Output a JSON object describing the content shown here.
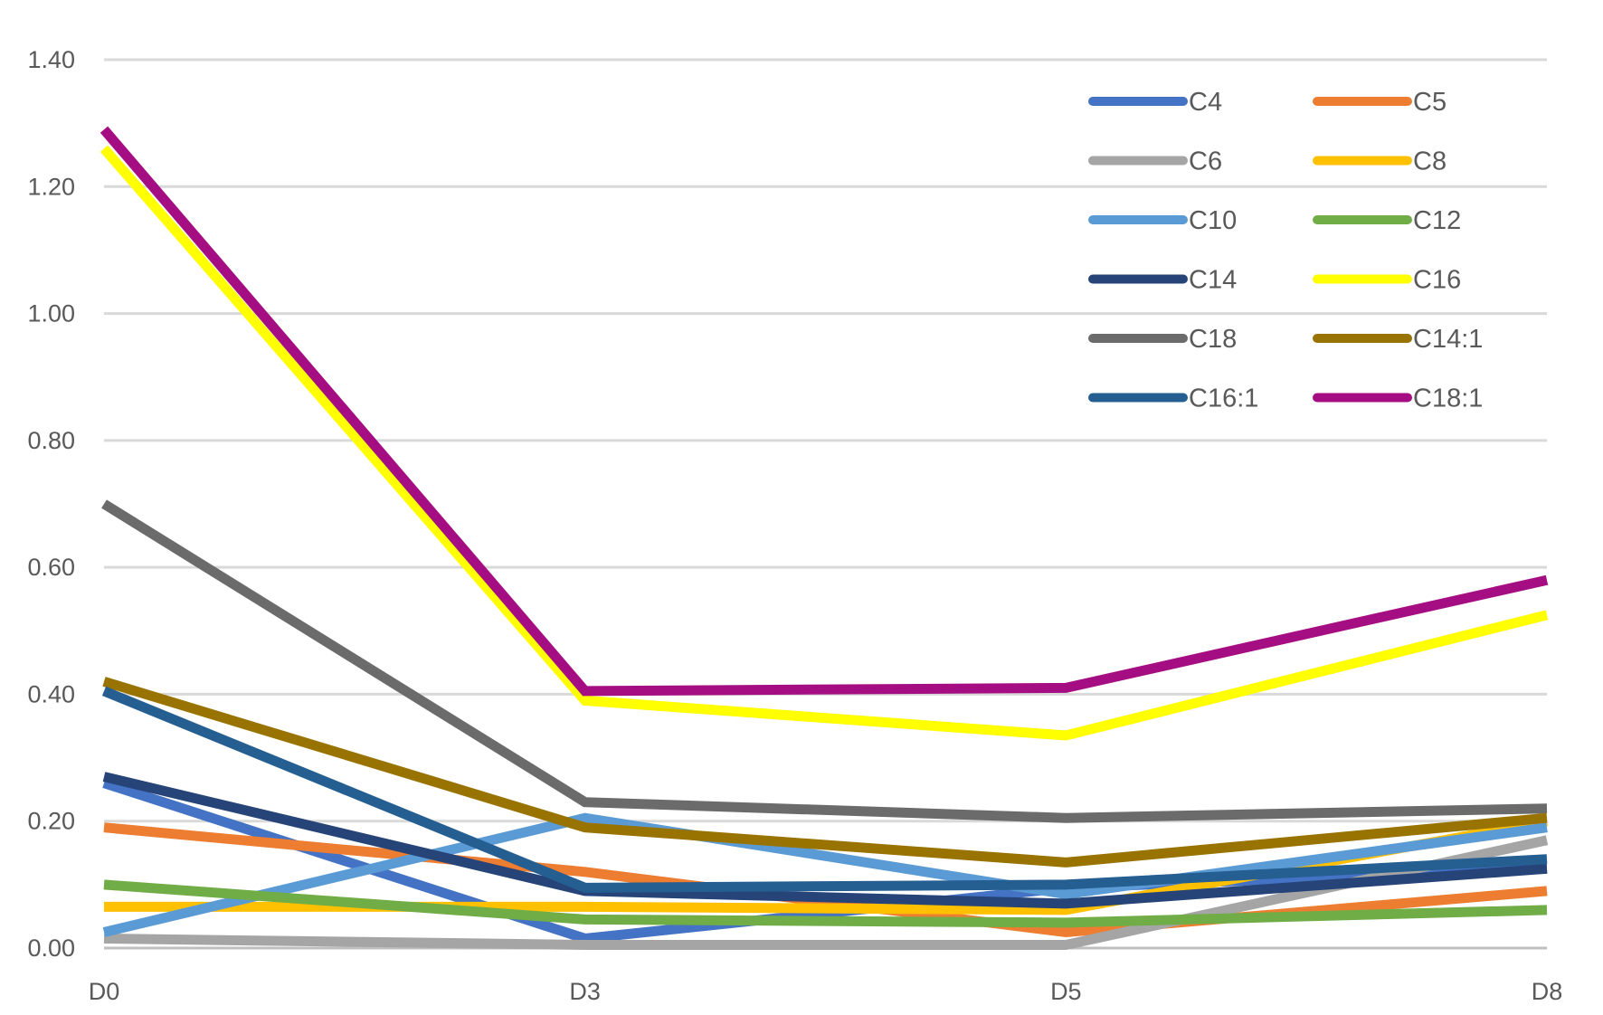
{
  "chart_data": {
    "type": "line",
    "title": "",
    "xlabel": "",
    "ylabel": "",
    "categories": [
      "D0",
      "D3",
      "D5",
      "D8"
    ],
    "ylim": [
      0,
      1.4
    ],
    "y_ticks": [
      "0.00",
      "0.20",
      "0.40",
      "0.60",
      "0.80",
      "1.00",
      "1.20",
      "1.40"
    ],
    "grid": "horizontal",
    "legend_position": "top-right",
    "series": [
      {
        "name": "C4",
        "color": "#4472C4",
        "values": [
          0.26,
          0.015,
          0.095,
          0.125
        ]
      },
      {
        "name": "C5",
        "color": "#ED7D31",
        "values": [
          0.19,
          0.12,
          0.025,
          0.09
        ]
      },
      {
        "name": "C6",
        "color": "#A5A5A5",
        "values": [
          0.015,
          0.005,
          0.005,
          0.17
        ]
      },
      {
        "name": "C8",
        "color": "#FFC000",
        "values": [
          0.065,
          0.065,
          0.06,
          0.2
        ]
      },
      {
        "name": "C10",
        "color": "#5B9BD5",
        "values": [
          0.025,
          0.205,
          0.085,
          0.19
        ]
      },
      {
        "name": "C12",
        "color": "#70AD47",
        "values": [
          0.1,
          0.045,
          0.04,
          0.06
        ]
      },
      {
        "name": "C14",
        "color": "#264478",
        "values": [
          0.27,
          0.09,
          0.07,
          0.125
        ]
      },
      {
        "name": "C16",
        "color": "#FFFF00",
        "values": [
          1.26,
          0.39,
          0.335,
          0.525
        ]
      },
      {
        "name": "C18",
        "color": "#6B6B6B",
        "values": [
          0.7,
          0.23,
          0.205,
          0.22
        ]
      },
      {
        "name": "C14:1",
        "color": "#997300",
        "values": [
          0.42,
          0.19,
          0.135,
          0.205
        ]
      },
      {
        "name": "C16:1",
        "color": "#255E91",
        "values": [
          0.405,
          0.095,
          0.1,
          0.14
        ]
      },
      {
        "name": "C18:1",
        "color": "#A50E82",
        "values": [
          1.29,
          0.405,
          0.41,
          0.58
        ]
      }
    ]
  }
}
